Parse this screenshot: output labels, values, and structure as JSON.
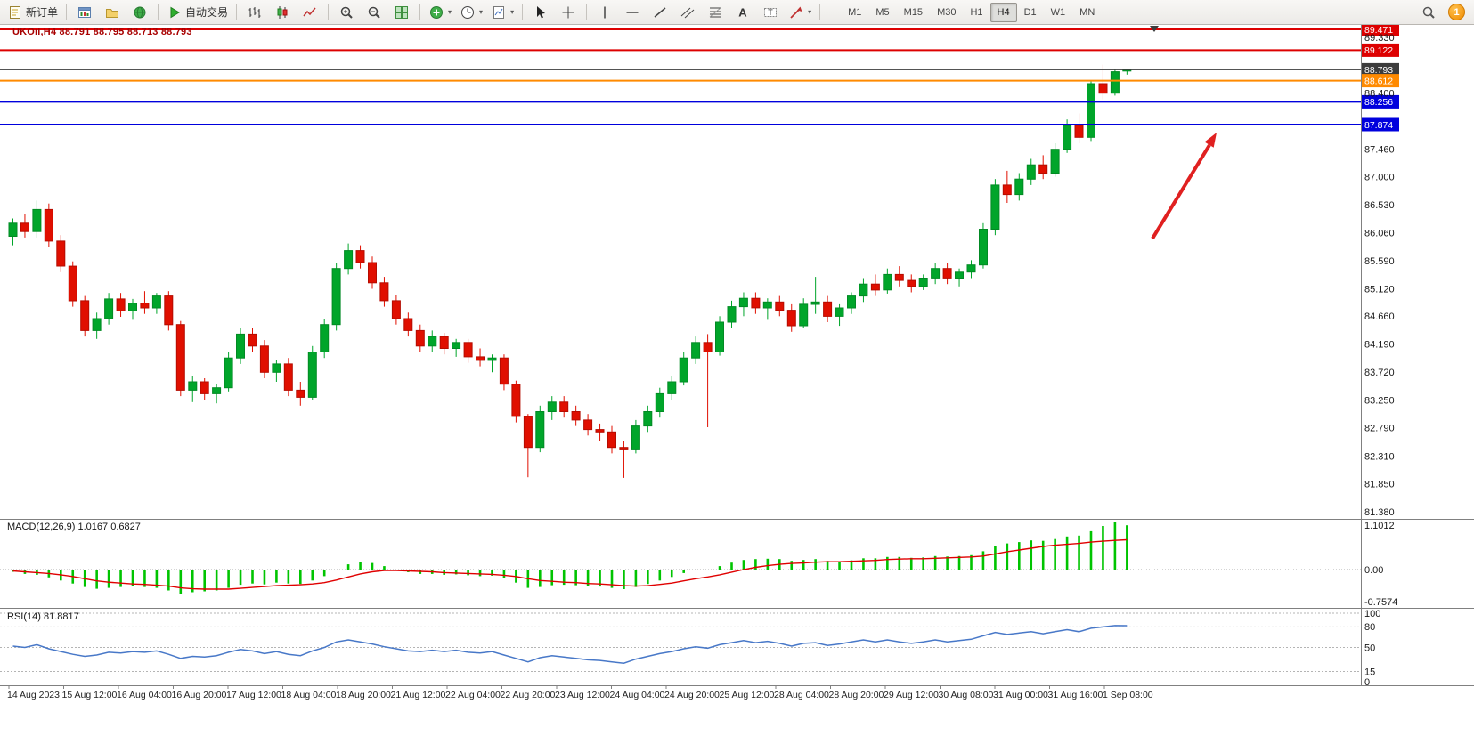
{
  "toolbar": {
    "groups": [
      {
        "name": "order",
        "items": [
          {
            "name": "new-order-button",
            "icon": "new-order-icon",
            "label": "新订单"
          }
        ]
      },
      {
        "name": "windows",
        "items": [
          {
            "name": "charts-window-button",
            "icon": "chart-window-icon"
          },
          {
            "name": "profiles-button",
            "icon": "profiles-icon"
          },
          {
            "name": "market-watch-button",
            "icon": "globe-icon"
          }
        ]
      },
      {
        "name": "autotrading",
        "items": [
          {
            "name": "autotrading-button",
            "icon": "play-icon",
            "label": "自动交易"
          }
        ]
      },
      {
        "name": "chart-type",
        "items": [
          {
            "name": "bar-chart-button",
            "icon": "bars-icon"
          },
          {
            "name": "candlestick-chart-button",
            "icon": "candles-icon"
          },
          {
            "name": "line-chart-button",
            "icon": "line-chart-icon"
          }
        ]
      },
      {
        "name": "zoom",
        "items": [
          {
            "name": "zoom-in-button",
            "icon": "zoom-in-icon"
          },
          {
            "name": "zoom-out-button",
            "icon": "zoom-out-icon"
          },
          {
            "name": "tile-windows-button",
            "icon": "tile-icon"
          }
        ]
      },
      {
        "name": "insert",
        "items": [
          {
            "name": "indicators-button",
            "icon": "indicator-icon",
            "dropdown": true
          },
          {
            "name": "periods-button",
            "icon": "clock-icon",
            "dropdown": true
          },
          {
            "name": "templates-button",
            "icon": "template-icon",
            "dropdown": true
          }
        ]
      },
      {
        "name": "pointer",
        "items": [
          {
            "name": "cursor-button",
            "icon": "cursor-icon"
          },
          {
            "name": "crosshair-button",
            "icon": "crosshair-icon"
          }
        ]
      },
      {
        "name": "objects",
        "items": [
          {
            "name": "vertical-line-button",
            "icon": "vline-icon"
          },
          {
            "name": "horizontal-line-button",
            "icon": "hline-icon"
          },
          {
            "name": "trendline-button",
            "icon": "trendline-icon"
          },
          {
            "name": "channel-button",
            "icon": "channel-icon"
          },
          {
            "name": "fibonacci-button",
            "icon": "fibo-icon"
          },
          {
            "name": "text-button",
            "icon": "text-icon"
          },
          {
            "name": "text-label-button",
            "icon": "label-icon"
          },
          {
            "name": "arrows-button",
            "icon": "shapes-icon",
            "dropdown": true
          }
        ]
      }
    ],
    "timeframes": {
      "items": [
        "M1",
        "M5",
        "M15",
        "M30",
        "H1",
        "H4",
        "D1",
        "W1",
        "MN"
      ],
      "active": "H4"
    },
    "notification_count": "1"
  },
  "chart": {
    "header": {
      "symbol_period": "UKOil,H4",
      "ohlc": "88.791 88.795 88.713 88.793"
    }
  },
  "macd": {
    "title": "MACD(12,26,9)",
    "main_value": "1.0167",
    "signal_value": "0.6827"
  },
  "rsi": {
    "title": "RSI(14)",
    "value": "81.8817"
  },
  "chart_data": {
    "type": "candlestick",
    "symbol": "UKOil",
    "period": "H4",
    "colors": {
      "bull": "#00a52a",
      "bull_edge": "#028a24",
      "bear": "#e00f00",
      "bear_edge": "#b50c00"
    },
    "price_axis_ticks": [
      "89.330",
      "88.400",
      "87.460",
      "87.000",
      "86.530",
      "86.060",
      "85.590",
      "85.120",
      "84.660",
      "84.190",
      "83.720",
      "83.250",
      "82.790",
      "82.310",
      "81.850",
      "81.380"
    ],
    "hlines": [
      {
        "label": "89.471",
        "value": 89.471,
        "color": "#dd0000",
        "width": 2
      },
      {
        "label": "89.122",
        "value": 89.122,
        "color": "#dd0000",
        "width": 2
      },
      {
        "label": "88.793",
        "value": 88.793,
        "color": "#3c3c3c",
        "width": 1
      },
      {
        "label": "88.612",
        "value": 88.612,
        "color": "#ff8a00",
        "width": 2
      },
      {
        "label": "88.256",
        "value": 88.256,
        "color": "#0000dd",
        "width": 2
      },
      {
        "label": "87.874",
        "value": 87.874,
        "color": "#0000dd",
        "width": 2
      }
    ],
    "time_labels": [
      "14 Aug 2023",
      "15 Aug 12:00",
      "16 Aug 04:00",
      "16 Aug 20:00",
      "17 Aug 12:00",
      "18 Aug 04:00",
      "18 Aug 20:00",
      "21 Aug 12:00",
      "22 Aug 04:00",
      "22 Aug 20:00",
      "23 Aug 12:00",
      "24 Aug 04:00",
      "24 Aug 20:00",
      "25 Aug 12:00",
      "28 Aug 04:00",
      "28 Aug 20:00",
      "29 Aug 12:00",
      "30 Aug 08:00",
      "31 Aug 00:00",
      "31 Aug 16:00",
      "1 Sep 08:00"
    ],
    "candles": [
      [
        86.0,
        86.3,
        85.85,
        86.22
      ],
      [
        86.22,
        86.38,
        85.98,
        86.08
      ],
      [
        86.08,
        86.6,
        85.98,
        86.45
      ],
      [
        86.45,
        86.55,
        85.82,
        85.92
      ],
      [
        85.92,
        86.02,
        85.4,
        85.5
      ],
      [
        85.5,
        85.58,
        84.82,
        84.92
      ],
      [
        84.92,
        85.0,
        84.32,
        84.42
      ],
      [
        84.42,
        84.72,
        84.28,
        84.62
      ],
      [
        84.62,
        85.05,
        84.52,
        84.95
      ],
      [
        84.95,
        85.05,
        84.65,
        84.75
      ],
      [
        84.75,
        84.95,
        84.6,
        84.88
      ],
      [
        84.88,
        85.08,
        84.7,
        84.8
      ],
      [
        84.8,
        85.05,
        84.7,
        85.0
      ],
      [
        85.0,
        85.08,
        84.42,
        84.52
      ],
      [
        84.52,
        84.58,
        83.32,
        83.42
      ],
      [
        83.42,
        83.66,
        83.22,
        83.56
      ],
      [
        83.56,
        83.62,
        83.26,
        83.36
      ],
      [
        83.36,
        83.52,
        83.2,
        83.46
      ],
      [
        83.46,
        84.06,
        83.4,
        83.96
      ],
      [
        83.96,
        84.46,
        83.86,
        84.36
      ],
      [
        84.36,
        84.46,
        84.06,
        84.16
      ],
      [
        84.16,
        84.26,
        83.62,
        83.72
      ],
      [
        83.72,
        83.92,
        83.56,
        83.86
      ],
      [
        83.86,
        83.96,
        83.32,
        83.42
      ],
      [
        83.42,
        83.56,
        83.16,
        83.3
      ],
      [
        83.3,
        84.16,
        83.26,
        84.06
      ],
      [
        84.06,
        84.62,
        83.96,
        84.52
      ],
      [
        84.52,
        85.56,
        84.42,
        85.46
      ],
      [
        85.46,
        85.88,
        85.36,
        85.76
      ],
      [
        85.76,
        85.85,
        85.46,
        85.56
      ],
      [
        85.56,
        85.66,
        85.12,
        85.22
      ],
      [
        85.22,
        85.32,
        84.82,
        84.92
      ],
      [
        84.92,
        85.02,
        84.52,
        84.62
      ],
      [
        84.62,
        84.72,
        84.32,
        84.42
      ],
      [
        84.42,
        84.52,
        84.06,
        84.16
      ],
      [
        84.16,
        84.42,
        84.06,
        84.32
      ],
      [
        84.32,
        84.38,
        84.02,
        84.12
      ],
      [
        84.12,
        84.28,
        83.98,
        84.22
      ],
      [
        84.22,
        84.28,
        83.88,
        83.98
      ],
      [
        83.98,
        84.12,
        83.82,
        83.92
      ],
      [
        83.92,
        84.02,
        83.72,
        83.96
      ],
      [
        83.96,
        84.02,
        83.42,
        83.52
      ],
      [
        83.52,
        83.58,
        82.88,
        82.98
      ],
      [
        82.98,
        83.02,
        81.96,
        82.46
      ],
      [
        82.46,
        83.16,
        82.38,
        83.06
      ],
      [
        83.06,
        83.32,
        82.92,
        83.22
      ],
      [
        83.22,
        83.32,
        82.96,
        83.06
      ],
      [
        83.06,
        83.16,
        82.82,
        82.92
      ],
      [
        82.92,
        83.02,
        82.66,
        82.76
      ],
      [
        82.76,
        82.86,
        82.56,
        82.72
      ],
      [
        82.72,
        82.82,
        82.36,
        82.46
      ],
      [
        82.46,
        82.56,
        81.95,
        82.42
      ],
      [
        82.42,
        82.92,
        82.36,
        82.82
      ],
      [
        82.82,
        83.16,
        82.72,
        83.06
      ],
      [
        83.06,
        83.46,
        82.96,
        83.36
      ],
      [
        83.36,
        83.66,
        83.26,
        83.56
      ],
      [
        83.56,
        84.06,
        83.5,
        83.96
      ],
      [
        83.96,
        84.32,
        83.86,
        84.22
      ],
      [
        84.22,
        84.36,
        82.8,
        84.06
      ],
      [
        84.06,
        84.66,
        84.0,
        84.56
      ],
      [
        84.56,
        84.92,
        84.46,
        84.82
      ],
      [
        84.82,
        85.06,
        84.66,
        84.96
      ],
      [
        84.96,
        85.06,
        84.7,
        84.8
      ],
      [
        84.8,
        84.96,
        84.6,
        84.9
      ],
      [
        84.9,
        85.0,
        84.66,
        84.76
      ],
      [
        84.76,
        84.86,
        84.4,
        84.5
      ],
      [
        84.5,
        84.96,
        84.46,
        84.86
      ],
      [
        84.86,
        85.32,
        84.7,
        84.9
      ],
      [
        84.9,
        85.0,
        84.56,
        84.66
      ],
      [
        84.66,
        84.86,
        84.5,
        84.8
      ],
      [
        84.8,
        85.06,
        84.7,
        85.0
      ],
      [
        85.0,
        85.3,
        84.9,
        85.2
      ],
      [
        85.2,
        85.36,
        85.0,
        85.1
      ],
      [
        85.1,
        85.46,
        85.04,
        85.36
      ],
      [
        85.36,
        85.5,
        85.16,
        85.26
      ],
      [
        85.26,
        85.36,
        85.06,
        85.16
      ],
      [
        85.16,
        85.36,
        85.1,
        85.3
      ],
      [
        85.3,
        85.56,
        85.2,
        85.46
      ],
      [
        85.46,
        85.56,
        85.2,
        85.3
      ],
      [
        85.3,
        85.46,
        85.16,
        85.4
      ],
      [
        85.4,
        85.6,
        85.3,
        85.52
      ],
      [
        85.52,
        86.22,
        85.46,
        86.12
      ],
      [
        86.12,
        86.96,
        86.02,
        86.86
      ],
      [
        86.86,
        87.1,
        86.56,
        86.7
      ],
      [
        86.7,
        87.06,
        86.6,
        86.96
      ],
      [
        86.96,
        87.3,
        86.86,
        87.2
      ],
      [
        87.2,
        87.36,
        86.96,
        87.06
      ],
      [
        87.06,
        87.56,
        87.0,
        87.46
      ],
      [
        87.46,
        87.96,
        87.4,
        87.86
      ],
      [
        87.86,
        88.06,
        87.56,
        87.66
      ],
      [
        87.66,
        88.62,
        87.6,
        88.56
      ],
      [
        88.56,
        88.88,
        88.3,
        88.4
      ],
      [
        88.4,
        88.8,
        88.36,
        88.76
      ],
      [
        88.791,
        88.795,
        88.713,
        88.793
      ]
    ],
    "macd": {
      "scale_labels": [
        "1.1012",
        "0.00",
        "-0.7574"
      ],
      "histogram_color": "#00c400",
      "signal_color": "#e00000",
      "histogram": [
        -0.05,
        -0.1,
        -0.12,
        -0.18,
        -0.25,
        -0.32,
        -0.4,
        -0.44,
        -0.42,
        -0.4,
        -0.38,
        -0.4,
        -0.42,
        -0.48,
        -0.55,
        -0.52,
        -0.5,
        -0.48,
        -0.42,
        -0.35,
        -0.32,
        -0.34,
        -0.3,
        -0.32,
        -0.33,
        -0.25,
        -0.15,
        0.0,
        0.12,
        0.18,
        0.15,
        0.08,
        0.0,
        -0.06,
        -0.1,
        -0.1,
        -0.12,
        -0.11,
        -0.13,
        -0.15,
        -0.14,
        -0.2,
        -0.3,
        -0.42,
        -0.4,
        -0.36,
        -0.35,
        -0.36,
        -0.38,
        -0.39,
        -0.42,
        -0.45,
        -0.4,
        -0.33,
        -0.25,
        -0.17,
        -0.08,
        0.0,
        -0.02,
        0.08,
        0.16,
        0.22,
        0.24,
        0.25,
        0.24,
        0.2,
        0.22,
        0.24,
        0.2,
        0.19,
        0.21,
        0.26,
        0.26,
        0.29,
        0.29,
        0.27,
        0.28,
        0.31,
        0.3,
        0.31,
        0.33,
        0.42,
        0.55,
        0.6,
        0.63,
        0.67,
        0.66,
        0.7,
        0.76,
        0.78,
        0.88,
        1.0,
        1.1,
        1.0167
      ],
      "signal": [
        -0.03,
        -0.05,
        -0.07,
        -0.09,
        -0.12,
        -0.16,
        -0.21,
        -0.26,
        -0.29,
        -0.31,
        -0.33,
        -0.34,
        -0.36,
        -0.38,
        -0.42,
        -0.44,
        -0.45,
        -0.45,
        -0.45,
        -0.43,
        -0.41,
        -0.39,
        -0.37,
        -0.36,
        -0.35,
        -0.33,
        -0.3,
        -0.24,
        -0.17,
        -0.1,
        -0.05,
        -0.02,
        -0.02,
        -0.03,
        -0.04,
        -0.05,
        -0.07,
        -0.08,
        -0.09,
        -0.1,
        -0.11,
        -0.13,
        -0.16,
        -0.21,
        -0.25,
        -0.27,
        -0.29,
        -0.3,
        -0.32,
        -0.33,
        -0.35,
        -0.37,
        -0.38,
        -0.37,
        -0.34,
        -0.31,
        -0.26,
        -0.21,
        -0.17,
        -0.12,
        -0.06,
        0.0,
        0.05,
        0.09,
        0.12,
        0.14,
        0.15,
        0.17,
        0.18,
        0.18,
        0.19,
        0.2,
        0.21,
        0.23,
        0.24,
        0.25,
        0.25,
        0.26,
        0.27,
        0.28,
        0.29,
        0.31,
        0.36,
        0.41,
        0.45,
        0.49,
        0.53,
        0.56,
        0.58,
        0.6,
        0.63,
        0.65,
        0.67,
        0.6827
      ]
    },
    "rsi": {
      "color": "#4878c8",
      "levels": [
        {
          "value": 100,
          "label": "100"
        },
        {
          "value": 80,
          "label": "80"
        },
        {
          "value": 50,
          "label": "50"
        },
        {
          "value": 15,
          "label": "15"
        },
        {
          "value": 0,
          "label": "0",
          "line": false
        }
      ],
      "values": [
        52,
        50,
        54,
        48,
        44,
        40,
        37,
        39,
        43,
        42,
        44,
        43,
        45,
        40,
        34,
        37,
        36,
        38,
        43,
        47,
        45,
        41,
        44,
        40,
        38,
        45,
        50,
        58,
        61,
        58,
        55,
        51,
        48,
        45,
        44,
        46,
        44,
        46,
        43,
        42,
        44,
        39,
        34,
        29,
        35,
        38,
        36,
        34,
        32,
        31,
        29,
        27,
        33,
        37,
        41,
        44,
        48,
        51,
        49,
        54,
        57,
        60,
        57,
        59,
        56,
        52,
        56,
        57,
        53,
        55,
        58,
        61,
        58,
        61,
        58,
        56,
        58,
        61,
        58,
        60,
        62,
        67,
        72,
        69,
        71,
        73,
        70,
        73,
        76,
        73,
        78,
        80,
        82,
        81.88
      ]
    },
    "annotation_arrow": {
      "color": "#e02020"
    }
  }
}
